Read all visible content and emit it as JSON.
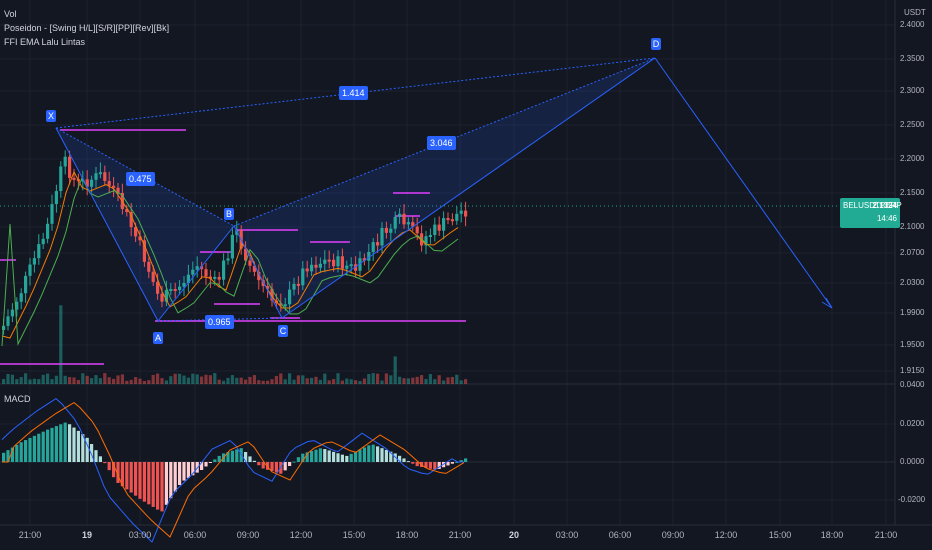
{
  "indicators": {
    "vol": "Vol",
    "poseidon": "Poseidon - [Swing H/L][S/R][PP][Rev][Bk]",
    "ema": "FFI EMA Lalu Lintas",
    "macd": "MACD"
  },
  "price_axis": {
    "unit": "USDT",
    "ticks": [
      "2.4000",
      "2.3500",
      "2.3000",
      "2.2500",
      "2.2000",
      "2.1500",
      "2.1000",
      "2.0700",
      "2.0300",
      "1.9900",
      "1.9500",
      "1.9150",
      "0.0400",
      "0.0200",
      "0.0000",
      "-0.0200"
    ]
  },
  "price_tag": {
    "symbol": "BELUSDTPERP",
    "price": "2.1324",
    "countdown": "14:46",
    "color": "#22ab94"
  },
  "time_axis": [
    "21:00",
    "19",
    "03:00",
    "06:00",
    "09:00",
    "12:00",
    "15:00",
    "18:00",
    "21:00",
    "20",
    "03:00",
    "06:00",
    "09:00",
    "12:00",
    "15:00",
    "18:00",
    "21:00"
  ],
  "pattern": {
    "points": [
      "X",
      "A",
      "B",
      "C",
      "D"
    ],
    "ratios": {
      "xb": "0.475",
      "ac": "0.965",
      "xd": "1.414",
      "bd": "3.046"
    },
    "line_color": "#2962ff"
  },
  "colors": {
    "up": "#26a69a",
    "down": "#ef5350",
    "sr": "#e040fb",
    "ema_fast": "#f57c00",
    "ema_slow": "#4caf50",
    "macd_line": "#2962ff",
    "signal_line": "#ff6d00"
  }
}
